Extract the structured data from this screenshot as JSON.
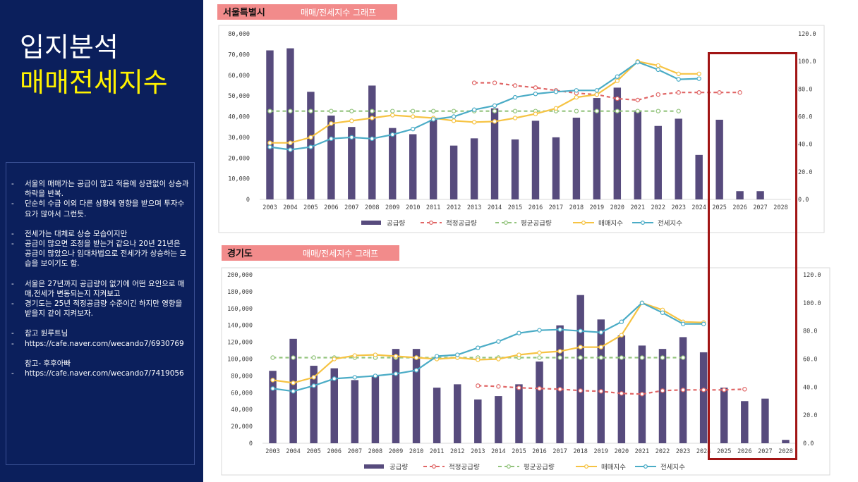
{
  "slide": {
    "title": "입지분석",
    "subtitle": "매매전세지수",
    "notes": [
      {
        "dash": "-",
        "text": "서울의 매매가는 공급이 많고 적음에 상관없이 상승과 하락을 반복."
      },
      {
        "dash": "-",
        "text": "단순히 수급 이외 다른 상황에 영향을 받으며 투자수요가 많아서 그런듯."
      },
      {
        "dash": "",
        "text": ""
      },
      {
        "dash": "-",
        "text": "전세가는 대체로 상승 모습이지만"
      },
      {
        "dash": "-",
        "text": "공급이 많으면 조정을 받는거 같으나 20년 21년은 공급이 많았으나 임대차법으로 전세가가 상승하는 모습을 보이기도 함."
      },
      {
        "dash": "",
        "text": ""
      },
      {
        "dash": "-",
        "text": "서울은 27년까지 공급량이 없기에 어떤 요인으로 매매,전세가 변동되는지 지켜보고"
      },
      {
        "dash": "-",
        "text": "경기도는 25년 적정공급량 수준이긴 하지만 영향을 받을지 같이 지켜보자."
      },
      {
        "dash": "",
        "text": ""
      },
      {
        "dash": "-",
        "text": "참고 원루트님"
      },
      {
        "dash": "-",
        "text": "https://cafe.naver.com/wecando7/6930769"
      },
      {
        "dash": "",
        "text": ""
      },
      {
        "dash": "",
        "text": "참고- 후후아빠"
      },
      {
        "dash": "-",
        "text": "https://cafe.naver.com/wecando7/7419056"
      }
    ]
  },
  "colors": {
    "panel_bg": "#0b1f5c",
    "title_white": "#ffffff",
    "subtitle_yellow": "#fff200",
    "bar": "#574b7d",
    "proper_supply": "#e06666",
    "avg_supply": "#93c47d",
    "sale_index": "#f6c343",
    "jeonse_index": "#4bacc6",
    "highlight_box": "#a11515",
    "tab_bg": "#f28b8b"
  },
  "chart_data": [
    {
      "type": "bar",
      "region": "서울특별시",
      "title": "매매/전세지수 그래프",
      "categories": [
        "2003",
        "2004",
        "2005",
        "2006",
        "2007",
        "2008",
        "2009",
        "2010",
        "2011",
        "2012",
        "2013",
        "2014",
        "2015",
        "2016",
        "2017",
        "2018",
        "2019",
        "2020",
        "2021",
        "2022",
        "2023",
        "2024",
        "2025",
        "2026",
        "2027",
        "2028"
      ],
      "y_left": {
        "min": 0,
        "max": 80000,
        "ticks": [
          "0",
          "10,000",
          "20,000",
          "30,000",
          "40,000",
          "50,000",
          "60,000",
          "70,000",
          "80,000"
        ]
      },
      "y_right": {
        "min": 0,
        "max": 120,
        "ticks": [
          "0.0",
          "20.0",
          "40.0",
          "60.0",
          "80.0",
          "100.0",
          "120.0"
        ]
      },
      "legend": [
        "공급량",
        "적정공급량",
        "평균공급량",
        "매매지수",
        "전세지수"
      ],
      "supply": [
        72000,
        73000,
        52000,
        40500,
        35000,
        55000,
        34500,
        31500,
        38500,
        26000,
        29500,
        44000,
        29000,
        38000,
        30000,
        39500,
        49000,
        54000,
        43000,
        35500,
        39000,
        21500,
        38500,
        4000,
        4000,
        null
      ],
      "proper_supply": [
        null,
        null,
        null,
        null,
        null,
        null,
        null,
        null,
        null,
        null,
        84.5,
        84.5,
        82.5,
        81,
        79,
        77,
        76,
        73,
        72,
        76,
        77.5,
        77.5,
        77.5,
        77.5,
        null,
        null
      ],
      "avg_supply": [
        64,
        64,
        64,
        64,
        64,
        64,
        64,
        64,
        64,
        64,
        64,
        64,
        64,
        64,
        64,
        64,
        64,
        64,
        64,
        64,
        64,
        null,
        null,
        null,
        null,
        null
      ],
      "sale_index": [
        41,
        41,
        45,
        55,
        57,
        59,
        61,
        60,
        59,
        57,
        56,
        56.5,
        59,
        62,
        66,
        74,
        76,
        86,
        100,
        97,
        91,
        91,
        null,
        null,
        null,
        null
      ],
      "jeonse_index": [
        38,
        36,
        38,
        44,
        45,
        44,
        47,
        51,
        58,
        60,
        65,
        68,
        74,
        76.5,
        78,
        79,
        79,
        89,
        99.5,
        94,
        87,
        87.5,
        null,
        null,
        null,
        null
      ]
    },
    {
      "type": "bar",
      "region": "경기도",
      "title": "매매/전세지수 그래프",
      "categories": [
        "2003",
        "2004",
        "2005",
        "2006",
        "2007",
        "2008",
        "2009",
        "2010",
        "2011",
        "2012",
        "2013",
        "2014",
        "2015",
        "2016",
        "2017",
        "2018",
        "2019",
        "2020",
        "2021",
        "2022",
        "2023",
        "2024",
        "2025",
        "2026",
        "2027",
        "2028"
      ],
      "y_left": {
        "min": 0,
        "max": 200000,
        "ticks": [
          "0",
          "20,000",
          "40,000",
          "60,000",
          "80,000",
          "100,000",
          "120,000",
          "140,000",
          "160,000",
          "180,000",
          "200,000"
        ]
      },
      "y_right": {
        "min": 0,
        "max": 120,
        "ticks": [
          "0.0",
          "20.0",
          "40.0",
          "60.0",
          "80.0",
          "100.0",
          "120.0"
        ]
      },
      "legend": [
        "공급량",
        "적정공급량",
        "평균공급량",
        "매매지수",
        "전세지수"
      ],
      "supply": [
        86000,
        124000,
        92000,
        89000,
        75000,
        80000,
        112000,
        112000,
        66000,
        70000,
        52000,
        56000,
        70000,
        97000,
        140000,
        176000,
        147000,
        128000,
        116000,
        112000,
        126000,
        108000,
        66000,
        50000,
        53000,
        4000
      ],
      "proper_supply": [
        null,
        null,
        null,
        null,
        null,
        null,
        null,
        null,
        null,
        null,
        41,
        40.5,
        39.5,
        39,
        38.5,
        37.5,
        37,
        35.5,
        35,
        37.5,
        38,
        38,
        38,
        38.5,
        null,
        null
      ],
      "avg_supply": [
        61,
        61,
        61,
        61,
        61,
        61,
        61,
        61,
        61,
        61,
        61,
        61,
        61,
        61,
        61,
        61,
        61,
        61,
        61,
        61,
        61,
        null,
        null,
        null,
        null,
        null
      ],
      "sale_index": [
        45,
        43,
        47,
        60,
        62.5,
        63,
        62,
        61,
        60,
        61,
        59.5,
        60,
        63,
        64.5,
        65.5,
        68.5,
        68.5,
        77,
        100,
        95,
        86.5,
        86,
        null,
        null,
        null,
        null
      ],
      "jeonse_index": [
        39,
        37,
        41,
        46,
        47,
        48,
        49.5,
        52,
        62,
        63,
        68,
        72.5,
        78.5,
        80.5,
        81,
        80,
        79,
        86.5,
        100,
        93,
        85,
        85,
        null,
        null,
        null,
        null
      ]
    }
  ]
}
